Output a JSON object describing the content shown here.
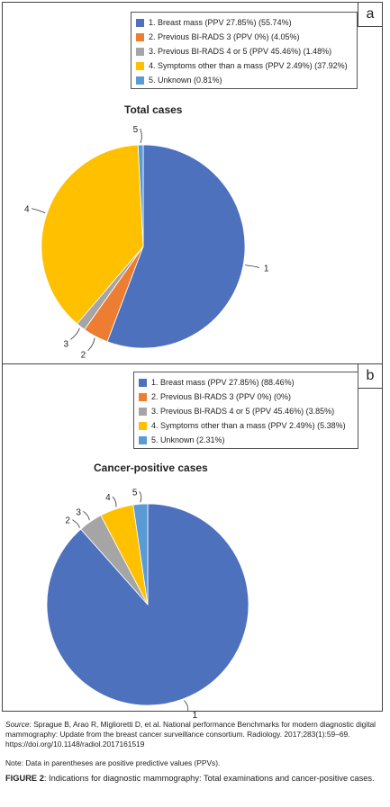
{
  "chart_data": [
    {
      "type": "pie",
      "panel_label": "a",
      "title": "Total cases",
      "series": [
        {
          "label": "1. Breast mass (PPV 27.85%) (55.74%)",
          "slice_label": "1",
          "value": 55.74,
          "color": "#4e71be"
        },
        {
          "label": "2. Previous BI-RADS 3 (PPV 0%) (4.05%)",
          "slice_label": "2",
          "value": 4.05,
          "color": "#ed7d31"
        },
        {
          "label": "3. Previous BI-RADS 4 or 5 (PPV 45.46%) (1.48%)",
          "slice_label": "3",
          "value": 1.48,
          "color": "#a5a5a5"
        },
        {
          "label": "4. Symptoms other than a mass (PPV 2.49%) (37.92%)",
          "slice_label": "4",
          "value": 37.92,
          "color": "#ffc000"
        },
        {
          "label": "5. Unknown (0.81%)",
          "slice_label": "5",
          "value": 0.81,
          "color": "#5b9bd5"
        }
      ]
    },
    {
      "type": "pie",
      "panel_label": "b",
      "title": "Cancer-positive cases",
      "series": [
        {
          "label": "1. Breast mass (PPV 27.85%) (88.46%)",
          "slice_label": "1",
          "value": 88.46,
          "color": "#4e71be"
        },
        {
          "label": "2. Previous BI-RADS 3 (PPV 0%) (0%)",
          "slice_label": "2",
          "value": 0,
          "color": "#ed7d31"
        },
        {
          "label": "3. Previous BI-RADS 4 or 5 (PPV 45.46%) (3.85%)",
          "slice_label": "3",
          "value": 3.85,
          "color": "#a5a5a5"
        },
        {
          "label": "4. Symptoms other than a mass (PPV 2.49%) (5.38%)",
          "slice_label": "4",
          "value": 5.38,
          "color": "#ffc000"
        },
        {
          "label": "5. Unknown (2.31%)",
          "slice_label": "5",
          "value": 2.31,
          "color": "#5b9bd5"
        }
      ]
    }
  ],
  "footer": {
    "source_label": "Source",
    "source_text": ": Sprague B, Arao R, Miglioretti D, et al. National performance Benchmarks for modern diagnostic digital mammography: Update from the breast cancer surveillance consortium. Radiology. 2017;283(1):59–69. https://doi.org/10.1148/radiol.2017161519",
    "note": "Note: Data in parentheses are positive predictive values (PPVs).",
    "figure_label": "FIGURE 2",
    "figure_caption": ": Indications for diagnostic mammography: Total examinations and cancer-positive cases."
  }
}
